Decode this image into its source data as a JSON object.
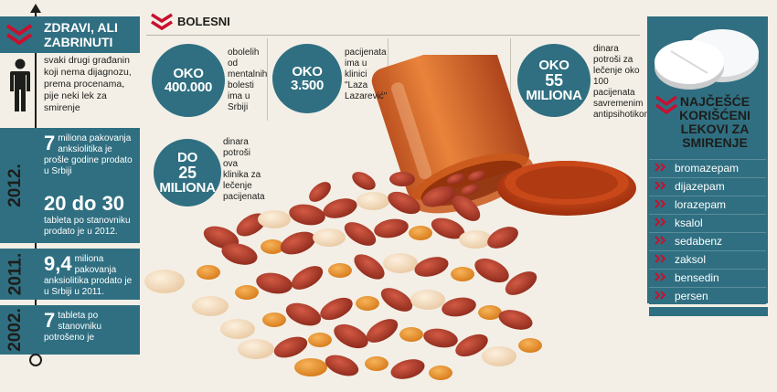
{
  "left": {
    "title_line1": "ZDRAVI, ALI",
    "title_line2": "ZABRINUTI",
    "intro": "svaki drugi građanin koji nema dijagnozu, prema procenama, pije neki lek za smirenje",
    "years": {
      "y2012": {
        "label": "2012.",
        "stat1_big": "7",
        "stat1_text": "miliona pakovanja anksiolitika je prošle godine prodato u Srbiji",
        "stat2_big": "20 do 30",
        "stat2_text": "tableta po stanovniku prodato je u 2012."
      },
      "y2011": {
        "label": "2011.",
        "stat_big": "9,4",
        "stat_text": "miliona pakovanja anksiolitika prodato je u Srbiji u 2011."
      },
      "y2002": {
        "label": "2002.",
        "stat_big": "7",
        "stat_text": "tableta po stanovniku potrošeno je"
      }
    }
  },
  "middle": {
    "title": "BOLESNI",
    "stats": [
      {
        "line1": "OKO",
        "line2": "400.000",
        "text": "obolelih od mentalnih bolesti ima u Srbiji"
      },
      {
        "line1": "OKO",
        "line2": "3.500",
        "text": "pacijenata ima u klinici \"Laza Lazarević\""
      },
      {
        "line1": "OKO",
        "line2": "55",
        "line3": "MILIONA",
        "text": "dinara potroši za lečenje oko 100 pacijenata savremenim antipsihotikom"
      },
      {
        "line1": "DO",
        "line2": "25",
        "line3": "MILIONA",
        "text": "dinara potroši ova klinika za lečenje pacijenata"
      }
    ]
  },
  "right": {
    "title": "NAJČEŠĆE KORIŠĆENI LEKOVI ZA SMIRENJE",
    "drugs": [
      "bromazepam",
      "dijazepam",
      "lorazepam",
      "ksalol",
      "sedabenz",
      "zaksol",
      "bensedin",
      "persen"
    ]
  },
  "colors": {
    "teal": "#2f6f81",
    "accent_red": "#c8102e",
    "background": "#f3efe6",
    "pill_red": "#b23a2a",
    "pill_orange": "#e8902a",
    "bottle_orange": "#d9661e"
  },
  "icons": [
    "double-chevron-down-icon",
    "person-icon",
    "timeline-arrow-icon"
  ]
}
